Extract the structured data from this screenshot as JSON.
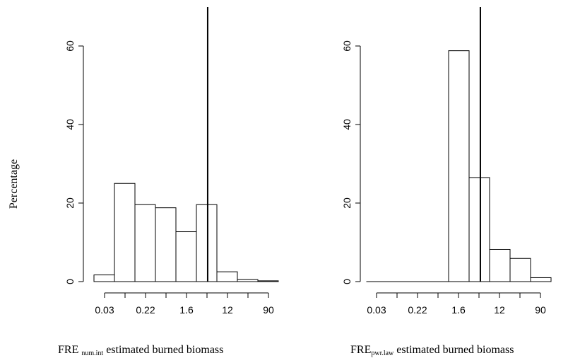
{
  "ylabel": "Percentage",
  "chart_data": [
    {
      "type": "bar",
      "xlabel_main": "FRE",
      "xlabel_sub": "num.int",
      "xlabel_rest": "estimated burned biomass",
      "x_ticks": [
        "0.03",
        "0.22",
        "1.6",
        "12",
        "90"
      ],
      "y_ticks": [
        "0",
        "20",
        "40",
        "60"
      ],
      "ylim": [
        0,
        70
      ],
      "values": [
        1.7,
        25,
        19.6,
        18.8,
        12.7,
        19.6,
        2.5,
        0.5,
        0.2
      ],
      "vertical_line_bin_position": 5.55
    },
    {
      "type": "bar",
      "xlabel_main": "FRE",
      "xlabel_sub": "pwr.law",
      "xlabel_rest": "estimated burned biomass",
      "x_ticks": [
        "0.03",
        "0.22",
        "1.6",
        "12",
        "90"
      ],
      "y_ticks": [
        "0",
        "20",
        "40",
        "60"
      ],
      "ylim": [
        0,
        70
      ],
      "values": [
        0,
        0,
        0,
        0,
        58.8,
        26.5,
        8.2,
        5.9,
        1
      ],
      "vertical_line_bin_position": 5.55
    }
  ]
}
